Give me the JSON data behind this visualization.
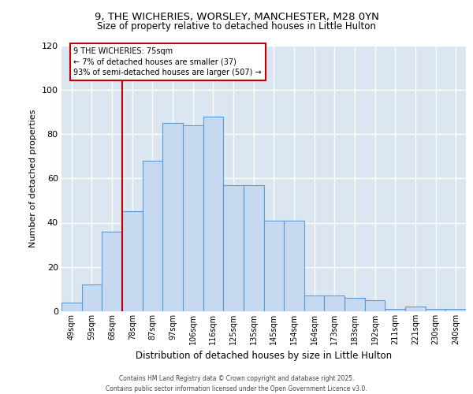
{
  "title1": "9, THE WICHERIES, WORSLEY, MANCHESTER, M28 0YN",
  "title2": "Size of property relative to detached houses in Little Hulton",
  "xlabel": "Distribution of detached houses by size in Little Hulton",
  "ylabel": "Number of detached properties",
  "bins_labels": [
    "49sqm",
    "59sqm",
    "68sqm",
    "78sqm",
    "87sqm",
    "97sqm",
    "106sqm",
    "116sqm",
    "125sqm",
    "135sqm",
    "145sqm",
    "154sqm",
    "164sqm",
    "173sqm",
    "183sqm",
    "192sqm",
    "211sqm",
    "221sqm",
    "230sqm",
    "240sqm"
  ],
  "bar_heights": [
    4,
    12,
    36,
    45,
    68,
    85,
    84,
    88,
    57,
    57,
    41,
    41,
    7,
    7,
    6,
    5,
    1,
    2,
    1,
    1
  ],
  "bar_color": "#c6d9f0",
  "bar_edge_color": "#5b9bd5",
  "bg_color": "#dce6f1",
  "vline_color": "#c00000",
  "vline_pos": 2.5,
  "annotation_text": "9 THE WICHERIES: 75sqm\n← 7% of detached houses are smaller (37)\n93% of semi-detached houses are larger (507) →",
  "footer": "Contains HM Land Registry data © Crown copyright and database right 2025.\nContains public sector information licensed under the Open Government Licence v3.0.",
  "ylim_max": 120,
  "yticks": [
    0,
    20,
    40,
    60,
    80,
    100,
    120
  ],
  "figsize": [
    6.0,
    5.0
  ],
  "dpi": 100
}
